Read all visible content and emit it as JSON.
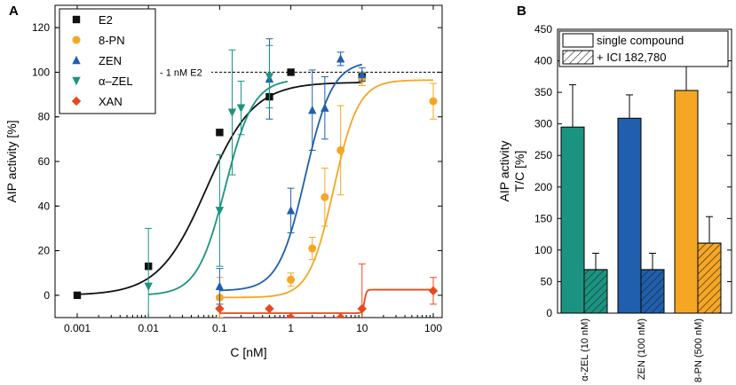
{
  "chart_data": [
    {
      "type": "scatter",
      "panel_label": "A",
      "xlabel": "C [nM]",
      "ylabel": "AIP activity [%]",
      "xscale": "log",
      "xlim": [
        0.001,
        100
      ],
      "ylim": [
        -10,
        130
      ],
      "x_ticks": [
        0.001,
        0.01,
        0.1,
        1,
        10,
        100
      ],
      "x_tick_labels": [
        "0.001",
        "0.01",
        "0.1",
        "1",
        "10",
        "100"
      ],
      "y_ticks": [
        0,
        20,
        40,
        60,
        80,
        100,
        120
      ],
      "y_tick_labels": [
        "0",
        "20",
        "40",
        "60",
        "80",
        "100",
        "120"
      ],
      "reference_line": {
        "y": 100,
        "label": "1 nM E2"
      },
      "legend_position": "top-left",
      "series": [
        {
          "name": "E2",
          "color": "#111111",
          "marker": "square",
          "points": [
            {
              "x": 0.001,
              "y": 0,
              "err": 0
            },
            {
              "x": 0.01,
              "y": 13,
              "err": 0
            },
            {
              "x": 0.1,
              "y": 73,
              "err": 0
            },
            {
              "x": 0.5,
              "y": 89,
              "err": 0
            },
            {
              "x": 1,
              "y": 100,
              "err": 0
            },
            {
              "x": 10,
              "y": 98,
              "err": 2
            }
          ],
          "fit": {
            "bottom": 0,
            "top": 95.5,
            "ec50": 0.065,
            "hill": 1.3,
            "x_range": [
              0.001,
              10
            ]
          }
        },
        {
          "name": "8-PN",
          "color": "#f5a623",
          "marker": "circle",
          "points": [
            {
              "x": 0.1,
              "y": -1,
              "err": 9
            },
            {
              "x": 1,
              "y": 7,
              "err": 3
            },
            {
              "x": 2,
              "y": 21,
              "err": 5
            },
            {
              "x": 3,
              "y": 44,
              "err": 13
            },
            {
              "x": 5,
              "y": 65,
              "err": 20
            },
            {
              "x": 10,
              "y": 97,
              "err": 3
            },
            {
              "x": 100,
              "y": 87,
              "err": 8
            }
          ],
          "fit": {
            "bottom": -1,
            "top": 96.5,
            "ec50": 4,
            "hill": 2.5,
            "x_range": [
              0.1,
              100
            ]
          }
        },
        {
          "name": "ZEN",
          "color": "#1f5fae",
          "marker": "triangle-up",
          "points": [
            {
              "x": 0.1,
              "y": 4,
              "err": 8
            },
            {
              "x": 0.5,
              "y": 97,
              "err": 18
            },
            {
              "x": 1,
              "y": 38,
              "err": 10
            },
            {
              "x": 2,
              "y": 83,
              "err": 18
            },
            {
              "x": 3,
              "y": 84,
              "err": 14
            },
            {
              "x": 5,
              "y": 106,
              "err": 3
            },
            {
              "x": 10,
              "y": 99,
              "err": 3
            }
          ],
          "fit": {
            "bottom": 2,
            "top": 105,
            "ec50": 1.6,
            "hill": 2.3,
            "x_range": [
              0.1,
              10
            ]
          }
        },
        {
          "name": "α–ZEL",
          "color": "#1a9480",
          "marker": "triangle-down",
          "points": [
            {
              "x": 0.01,
              "y": 4,
              "err": 26
            },
            {
              "x": 0.1,
              "y": 38,
              "err": 25
            },
            {
              "x": 0.15,
              "y": 82,
              "err": 28
            },
            {
              "x": 0.2,
              "y": 84,
              "err": 12
            },
            {
              "x": 0.5,
              "y": 98,
              "err": 14
            }
          ],
          "fit": {
            "bottom": 0,
            "top": 97,
            "ec50": 0.12,
            "hill": 2.2,
            "x_range": [
              0.01,
              0.9
            ]
          }
        },
        {
          "name": "XAN",
          "color": "#e8481c",
          "marker": "diamond",
          "points": [
            {
              "x": 0.1,
              "y": -6,
              "err": 0
            },
            {
              "x": 0.5,
              "y": -6,
              "err": 0
            },
            {
              "x": 1,
              "y": -10,
              "err": 0
            },
            {
              "x": 5,
              "y": -10,
              "err": 0
            },
            {
              "x": 10,
              "y": -6,
              "err": 20
            },
            {
              "x": 100,
              "y": 2,
              "err": 6
            }
          ],
          "fit": {
            "bottom": -8,
            "top": 2.5,
            "ec50": 10.8,
            "hill": 30,
            "x_range": [
              0.1,
              100
            ]
          }
        }
      ]
    },
    {
      "type": "bar",
      "panel_label": "B",
      "ylabel": "AIP activity\nT/C [%]",
      "ylabel_lines": [
        "AIP activity",
        "T/C [%]"
      ],
      "ylim": [
        0,
        450
      ],
      "y_ticks": [
        0,
        50,
        100,
        150,
        200,
        250,
        300,
        350,
        400,
        450
      ],
      "y_tick_labels": [
        "0",
        "50",
        "100",
        "150",
        "200",
        "250",
        "300",
        "350",
        "400",
        "450"
      ],
      "categories": [
        "α-ZEL (10 nM)",
        "ZEN (100 nM)",
        "8-PN (500 nM)"
      ],
      "category_colors": [
        "#1a9480",
        "#1f5fae",
        "#f5a623"
      ],
      "legend_position": "top",
      "series": [
        {
          "name": "single compound",
          "pattern": "solid",
          "values": [
            295,
            309,
            353
          ],
          "errors": [
            67,
            37,
            44
          ]
        },
        {
          "name": "+ ICI 182,780",
          "pattern": "hatched",
          "values": [
            69,
            69,
            111
          ],
          "errors": [
            26,
            26,
            42
          ]
        }
      ]
    }
  ]
}
